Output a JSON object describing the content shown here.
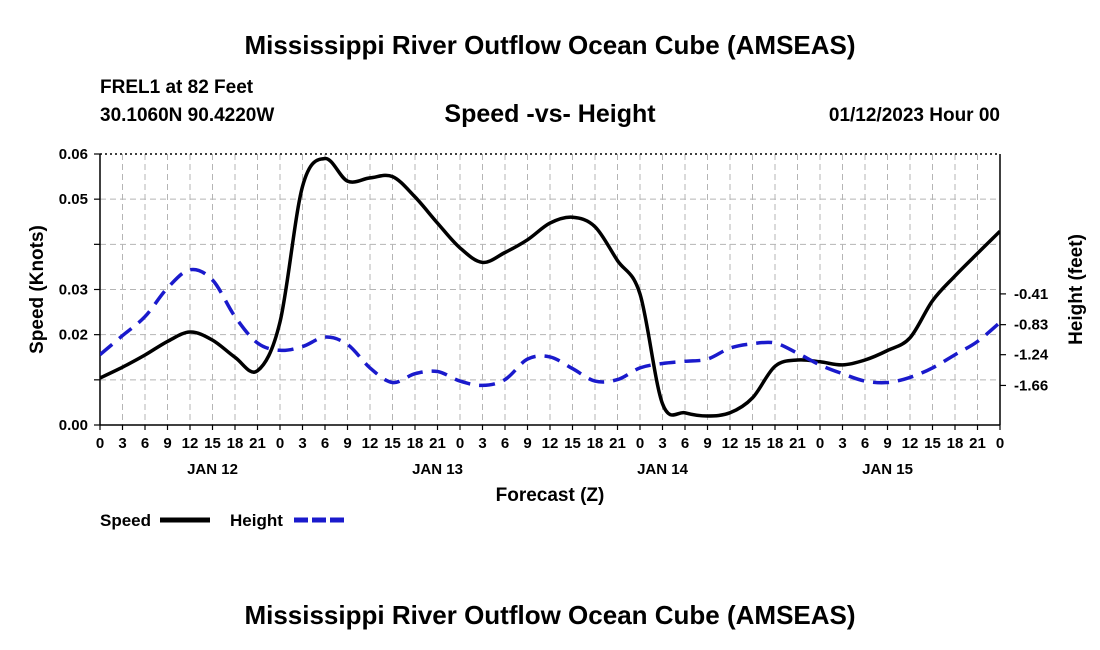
{
  "page": {
    "title": "Mississippi River Outflow Ocean Cube (AMSEAS)",
    "footer_title": "Mississippi River Outflow Ocean Cube (AMSEAS)",
    "station_line": "FREL1 at 82 Feet",
    "coords_line": "30.1060N  90.4220W",
    "datetime": "01/12/2023 Hour 00"
  },
  "chart_data": {
    "type": "line",
    "title": "Speed -vs- Height",
    "xlabel": "Forecast (Z)",
    "ylabel": "Speed (Knots)",
    "y2label": "Height (feet)",
    "ylim": [
      0,
      0.06
    ],
    "y2lim": [
      -2.2,
      1.5
    ],
    "grid": true,
    "x_ticks": [
      0,
      3,
      6,
      9,
      12,
      15,
      18,
      21,
      24,
      27,
      30,
      33,
      36,
      39,
      42,
      45,
      48,
      51,
      54,
      57,
      60,
      63,
      66,
      69,
      72,
      75,
      78,
      81,
      84,
      87,
      90,
      93,
      96,
      99,
      102,
      105,
      108,
      111,
      114,
      117,
      120
    ],
    "x_tick_labels": [
      "0",
      "3",
      "6",
      "9",
      "12",
      "15",
      "18",
      "21",
      "0",
      "3",
      "6",
      "9",
      "12",
      "15",
      "18",
      "21",
      "0",
      "3",
      "6",
      "9",
      "12",
      "15",
      "18",
      "21",
      "0",
      "3",
      "6",
      "9",
      "12",
      "15",
      "18",
      "21",
      "0",
      "3",
      "6",
      "9",
      "12",
      "15",
      "18",
      "21",
      "0"
    ],
    "day_labels": [
      {
        "hour": 15,
        "label": "JAN 12"
      },
      {
        "hour": 45,
        "label": "JAN 13"
      },
      {
        "hour": 75,
        "label": "JAN 14"
      },
      {
        "hour": 105,
        "label": "JAN 15"
      }
    ],
    "y_ticks": [
      0,
      0.01,
      0.02,
      0.03,
      0.04,
      0.05,
      0.06
    ],
    "y_tick_labels": [
      "0.00",
      "",
      "0.02",
      "0.03",
      "",
      "0.05",
      "0.06"
    ],
    "y2_ticks": [
      -1.66,
      -1.24,
      -0.83,
      -0.41
    ],
    "y2_tick_labels": [
      "-1.66",
      "-1.24",
      "-0.83",
      "-0.41"
    ],
    "legend": [
      {
        "label": "Speed",
        "color": "#000000",
        "dashed": false
      },
      {
        "label": "Height",
        "color": "#1a1acc",
        "dashed": true
      }
    ],
    "series": [
      {
        "name": "Speed",
        "axis": "left",
        "color": "#000000",
        "dashed": false,
        "x": [
          0,
          3,
          6,
          9,
          12,
          15,
          18,
          21,
          24,
          27,
          30,
          33,
          36,
          39,
          42,
          45,
          48,
          51,
          54,
          57,
          60,
          63,
          66,
          69,
          72,
          75,
          78,
          81,
          84,
          87,
          90,
          93,
          96,
          99,
          102,
          105,
          108,
          111,
          114,
          117,
          120
        ],
        "values": [
          0.0104,
          0.0128,
          0.0155,
          0.0185,
          0.0206,
          0.0188,
          0.015,
          0.012,
          0.0228,
          0.0528,
          0.059,
          0.054,
          0.0547,
          0.055,
          0.0505,
          0.0447,
          0.0392,
          0.036,
          0.0382,
          0.041,
          0.0447,
          0.046,
          0.0439,
          0.0364,
          0.029,
          0.0047,
          0.0027,
          0.002,
          0.0027,
          0.006,
          0.013,
          0.0144,
          0.014,
          0.0133,
          0.0144,
          0.0165,
          0.0193,
          0.0275,
          0.033,
          0.038,
          0.0429
        ]
      },
      {
        "name": "Height",
        "axis": "right",
        "color": "#1a1acc",
        "dashed": true,
        "x": [
          0,
          3,
          6,
          9,
          12,
          15,
          18,
          21,
          24,
          27,
          30,
          33,
          36,
          39,
          42,
          45,
          48,
          51,
          54,
          57,
          60,
          63,
          66,
          69,
          72,
          75,
          78,
          81,
          84,
          87,
          90,
          93,
          96,
          99,
          102,
          105,
          108,
          111,
          114,
          117,
          120
        ],
        "values": [
          -1.24,
          -0.98,
          -0.72,
          -0.33,
          -0.08,
          -0.22,
          -0.72,
          -1.08,
          -1.18,
          -1.13,
          -1.0,
          -1.1,
          -1.42,
          -1.62,
          -1.5,
          -1.47,
          -1.6,
          -1.66,
          -1.58,
          -1.3,
          -1.27,
          -1.43,
          -1.6,
          -1.58,
          -1.42,
          -1.36,
          -1.33,
          -1.3,
          -1.15,
          -1.09,
          -1.08,
          -1.22,
          -1.38,
          -1.5,
          -1.6,
          -1.62,
          -1.55,
          -1.42,
          -1.24,
          -1.06,
          -0.8
        ]
      }
    ]
  }
}
